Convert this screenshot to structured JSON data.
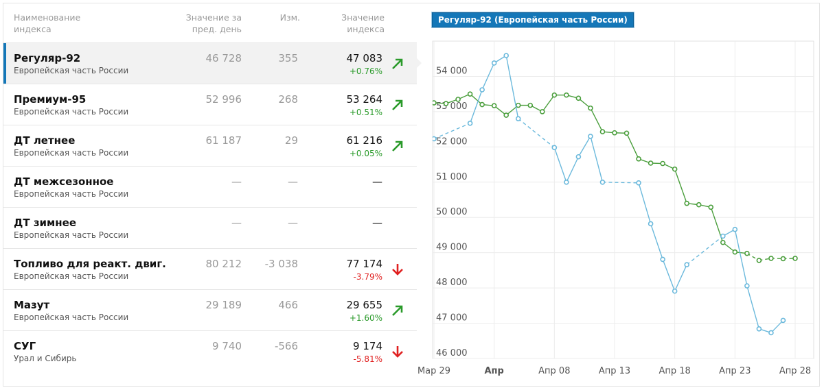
{
  "header": {
    "name": "Наименование\nиндекса",
    "prev": "Значение за\nпред. день",
    "change": "Изм.",
    "index": "Значение\nиндекса"
  },
  "rows": [
    {
      "name": "Регуляр-92",
      "region": "Европейская часть России",
      "prev": "46 728",
      "change": "355",
      "value": "47 083",
      "pct": "+0.76%",
      "dir": "up",
      "selected": true
    },
    {
      "name": "Премиум-95",
      "region": "Европейская часть России",
      "prev": "52 996",
      "change": "268",
      "value": "53 264",
      "pct": "+0.51%",
      "dir": "up"
    },
    {
      "name": "ДТ летнее",
      "region": "Европейская часть России",
      "prev": "61 187",
      "change": "29",
      "value": "61 216",
      "pct": "+0.05%",
      "dir": "up"
    },
    {
      "name": "ДТ межсезонное",
      "region": "Европейская часть России",
      "prev": "—",
      "change": "—",
      "value": "—",
      "pct": "",
      "dir": ""
    },
    {
      "name": "ДТ зимнее",
      "region": "Европейская часть России",
      "prev": "—",
      "change": "—",
      "value": "—",
      "pct": "",
      "dir": ""
    },
    {
      "name": "Топливо для реакт. двиг.",
      "region": "Европейская часть России",
      "prev": "80 212",
      "change": "-3 038",
      "value": "77 174",
      "pct": "-3.79%",
      "dir": "down"
    },
    {
      "name": "Мазут",
      "region": "Европейская часть России",
      "prev": "29 189",
      "change": "466",
      "value": "29 655",
      "pct": "+1.60%",
      "dir": "up"
    },
    {
      "name": "СУГ",
      "region": "Урал и Сибирь",
      "prev": "9 740",
      "change": "-566",
      "value": "9 174",
      "pct": "-5.81%",
      "dir": "down"
    }
  ],
  "colors": {
    "accent": "#1477b8",
    "up": "#2a9a2a",
    "down": "#e02020",
    "series_green": "#4a9e3c",
    "series_blue": "#6bb9dc"
  },
  "chart_data": {
    "type": "line",
    "title": "Регуляр-92 (Европейская часть России)",
    "ylim": [
      46000,
      55000
    ],
    "yticks": [
      46000,
      47000,
      48000,
      49000,
      50000,
      51000,
      52000,
      53000,
      54000
    ],
    "ytick_labels": [
      "46 000",
      "47 000",
      "48 000",
      "49 000",
      "50 000",
      "51 000",
      "52 000",
      "53 000",
      "54 000"
    ],
    "xlim": [
      -0.3,
      30.3
    ],
    "xticks": [
      0,
      5,
      10,
      15,
      20,
      25,
      30
    ],
    "xtick_labels": [
      "Мар 29",
      "Апр",
      "Апр 08",
      "Апр 13",
      "Апр 18",
      "Апр 23",
      "Апр 28"
    ],
    "series": [
      {
        "name": "",
        "color": "#4a9e3c",
        "points": [
          [
            0,
            53250
          ],
          [
            1,
            53230
          ],
          [
            2,
            53350
          ],
          [
            3,
            53500
          ],
          [
            4,
            53200
          ],
          [
            5,
            53170
          ],
          [
            6,
            52900
          ],
          [
            7,
            53180
          ],
          [
            8,
            53180
          ],
          [
            9,
            53000
          ],
          [
            10,
            53470
          ],
          [
            11,
            53470
          ],
          [
            12,
            53380
          ],
          [
            13,
            53100
          ],
          [
            14,
            52430
          ],
          [
            15,
            52400
          ],
          [
            16,
            52390
          ],
          [
            17,
            51660
          ],
          [
            18,
            51540
          ],
          [
            19,
            51530
          ],
          [
            20,
            51370
          ],
          [
            21,
            50400
          ],
          [
            22,
            50360
          ],
          [
            23,
            50290
          ],
          [
            24,
            49290
          ],
          [
            25,
            49020
          ],
          [
            26,
            48980
          ],
          [
            27,
            48780
          ],
          [
            28,
            48840
          ],
          [
            29,
            48830
          ],
          [
            30,
            48840
          ]
        ],
        "dashed_from": 26
      },
      {
        "name": "",
        "color": "#6bb9dc",
        "points": [
          [
            0,
            52230
          ],
          [
            3,
            52670
          ],
          [
            4,
            53620
          ],
          [
            5,
            54380
          ],
          [
            6,
            54590
          ],
          [
            7,
            52800
          ],
          [
            10,
            51980
          ],
          [
            11,
            51000
          ],
          [
            12,
            51720
          ],
          [
            13,
            52300
          ],
          [
            14,
            51000
          ],
          [
            17,
            50980
          ],
          [
            18,
            49820
          ],
          [
            19,
            48810
          ],
          [
            20,
            47910
          ],
          [
            21,
            48660
          ],
          [
            24,
            49470
          ],
          [
            25,
            49660
          ],
          [
            26,
            48060
          ],
          [
            27,
            46840
          ],
          [
            28,
            46730
          ],
          [
            29,
            47080
          ]
        ],
        "dashed_segments": [
          [
            0,
            3
          ],
          [
            7,
            10
          ],
          [
            14,
            17
          ],
          [
            21,
            24
          ]
        ]
      }
    ]
  }
}
